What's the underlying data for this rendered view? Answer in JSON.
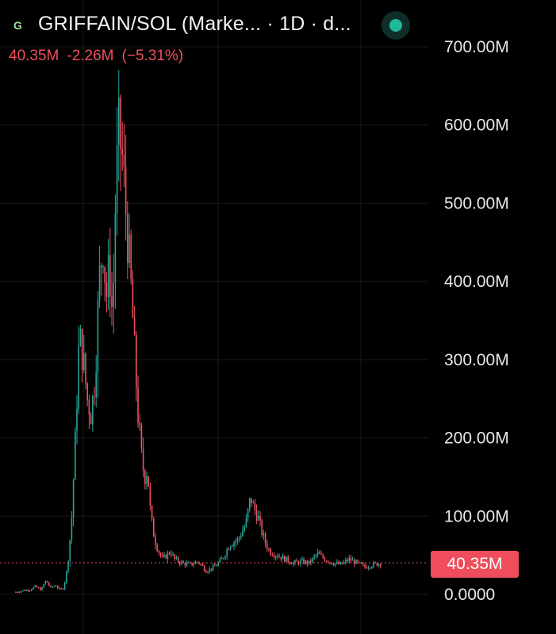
{
  "header": {
    "logo_letter": "G",
    "title": "GRIFFAIN/SOL (Marke...  · 1D · d...",
    "quote": {
      "last": "40.35M",
      "change": "-2.26M",
      "change_pct": "(−5.31%)"
    }
  },
  "colors": {
    "up": "#26a69a",
    "down": "#ef5361",
    "background": "#000000",
    "grid": "#1a1a1a"
  },
  "icons": {
    "status": "green-status-dot-icon",
    "logo": "griffain-logo-icon"
  },
  "chart_data": {
    "type": "candlestick",
    "series_name": "GRIFFAIN/SOL Market Cap",
    "interval": "1D",
    "ylim": [
      0,
      700000000
    ],
    "yticks": [
      {
        "value": 700000000,
        "label": "700.00M"
      },
      {
        "value": 600000000,
        "label": "600.00M"
      },
      {
        "value": 500000000,
        "label": "500.00M"
      },
      {
        "value": 400000000,
        "label": "400.00M"
      },
      {
        "value": 300000000,
        "label": "300.00M"
      },
      {
        "value": 200000000,
        "label": "200.00M"
      },
      {
        "value": 100000000,
        "label": "100.00M"
      },
      {
        "value": 0,
        "label": "0.0000"
      }
    ],
    "last_price": {
      "value": 40350000,
      "label": "40.35M"
    },
    "close_path_millions": [
      [
        0,
        3
      ],
      [
        10,
        5
      ],
      [
        18,
        6
      ],
      [
        24,
        10
      ],
      [
        32,
        6
      ],
      [
        38,
        18
      ],
      [
        44,
        8
      ],
      [
        50,
        12
      ],
      [
        55,
        6
      ],
      [
        60,
        8
      ],
      [
        65,
        35
      ],
      [
        70,
        90
      ],
      [
        75,
        200
      ],
      [
        80,
        330
      ],
      [
        85,
        300
      ],
      [
        90,
        250
      ],
      [
        95,
        230
      ],
      [
        100,
        280
      ],
      [
        105,
        400
      ],
      [
        110,
        450
      ],
      [
        114,
        380
      ],
      [
        118,
        420
      ],
      [
        122,
        350
      ],
      [
        126,
        520
      ],
      [
        130,
        590
      ],
      [
        134,
        560
      ],
      [
        138,
        500
      ],
      [
        142,
        440
      ],
      [
        146,
        380
      ],
      [
        150,
        300
      ],
      [
        154,
        230
      ],
      [
        158,
        180
      ],
      [
        162,
        150
      ],
      [
        166,
        160
      ],
      [
        170,
        100
      ],
      [
        175,
        70
      ],
      [
        180,
        55
      ],
      [
        185,
        45
      ],
      [
        190,
        50
      ],
      [
        195,
        55
      ],
      [
        200,
        45
      ],
      [
        210,
        40
      ],
      [
        220,
        38
      ],
      [
        230,
        42
      ],
      [
        240,
        30
      ],
      [
        250,
        35
      ],
      [
        260,
        45
      ],
      [
        270,
        65
      ],
      [
        280,
        70
      ],
      [
        290,
        90
      ],
      [
        296,
        125
      ],
      [
        300,
        110
      ],
      [
        305,
        100
      ],
      [
        310,
        80
      ],
      [
        315,
        65
      ],
      [
        320,
        55
      ],
      [
        330,
        50
      ],
      [
        340,
        45
      ],
      [
        350,
        40
      ],
      [
        360,
        42
      ],
      [
        370,
        40
      ],
      [
        380,
        52
      ],
      [
        390,
        45
      ],
      [
        400,
        40
      ],
      [
        410,
        38
      ],
      [
        420,
        45
      ],
      [
        430,
        40
      ],
      [
        440,
        35
      ],
      [
        450,
        38
      ],
      [
        460,
        40
      ],
      [
        470,
        45
      ],
      [
        480,
        40
      ]
    ]
  }
}
